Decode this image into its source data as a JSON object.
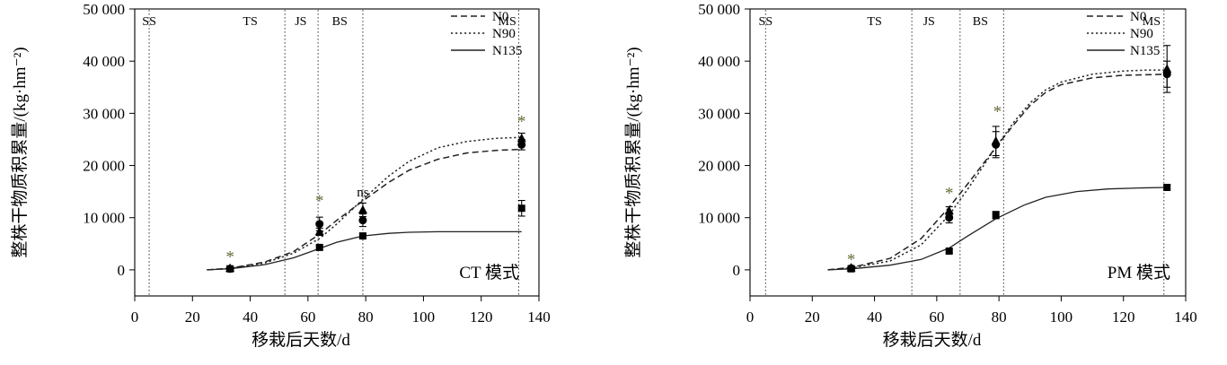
{
  "chart_data": [
    {
      "type": "line",
      "ylabel": "整株干物质积累量/(kg·hm⁻²)",
      "xlabel": "移栽后天数/d",
      "xlim": [
        0,
        140
      ],
      "ylim": [
        -5000,
        50000
      ],
      "xticks": [
        0,
        20,
        40,
        60,
        80,
        100,
        120,
        140
      ],
      "xtick_labels": [
        "0",
        "20",
        "40",
        "60",
        "80",
        "100",
        "120",
        "140"
      ],
      "yticks": [
        0,
        10000,
        20000,
        30000,
        40000,
        50000
      ],
      "ytick_labels": [
        "0",
        "10 000",
        "20 000",
        "30 000",
        "40 000",
        "50 000"
      ],
      "mode_label": "CT 模式",
      "grid": false,
      "legend_position": "top-right",
      "stage_boundaries": [
        5,
        52,
        63.5,
        79,
        133
      ],
      "stages": [
        {
          "label": "SS",
          "x": 5
        },
        {
          "label": "TS",
          "x": 40
        },
        {
          "label": "JS",
          "x": 57.5
        },
        {
          "label": "BS",
          "x": 71
        },
        {
          "label": "MS",
          "x": 129
        }
      ],
      "significance": [
        {
          "x": 33,
          "y": 2800,
          "label": "*"
        },
        {
          "x": 64,
          "y": 13600,
          "label": "*"
        },
        {
          "x": 79,
          "y": 14800,
          "label": "ns"
        },
        {
          "x": 134,
          "y": 28800,
          "label": "*"
        }
      ],
      "series": [
        {
          "name": "N0",
          "dash": "dashed",
          "curve": {
            "x": [
              25,
              33,
              45,
              55,
              64,
              70,
              79,
              88,
              95,
              105,
              115,
              125,
              134
            ],
            "y": [
              0,
              300,
              1500,
              3500,
              6800,
              9500,
              13200,
              16800,
              19100,
              21200,
              22400,
              22900,
              23100
            ]
          },
          "points": [
            {
              "x": 33,
              "y": 300,
              "err": 400
            },
            {
              "x": 64,
              "y": 7300,
              "err": 700
            },
            {
              "x": 79,
              "y": 11500,
              "err": 1300
            },
            {
              "x": 134,
              "y": 25200,
              "err": 1000
            }
          ]
        },
        {
          "name": "N90",
          "dash": "dotted",
          "curve": {
            "x": [
              25,
              33,
              45,
              55,
              64,
              70,
              79,
              88,
              95,
              105,
              115,
              125,
              134
            ],
            "y": [
              0,
              300,
              1300,
              3200,
              6000,
              8800,
              13500,
              18000,
              20800,
              23400,
              24600,
              25200,
              25400
            ]
          },
          "points": [
            {
              "x": 33,
              "y": 200,
              "err": 400
            },
            {
              "x": 64,
              "y": 8800,
              "err": 1300
            },
            {
              "x": 79,
              "y": 9500,
              "err": 1200
            },
            {
              "x": 134,
              "y": 24000,
              "err": 1000
            }
          ]
        },
        {
          "name": "N135",
          "dash": "solid",
          "curve": {
            "x": [
              25,
              33,
              45,
              55,
              64,
              70,
              79,
              88,
              95,
              105,
              115,
              125,
              134
            ],
            "y": [
              0,
              200,
              1000,
              2300,
              4100,
              5300,
              6500,
              7000,
              7200,
              7300,
              7300,
              7300,
              7300
            ]
          },
          "points": [
            {
              "x": 33,
              "y": 200,
              "err": 300
            },
            {
              "x": 64,
              "y": 4300,
              "err": 400
            },
            {
              "x": 79,
              "y": 6500,
              "err": 500
            },
            {
              "x": 134,
              "y": 11800,
              "err": 1500
            }
          ]
        }
      ]
    },
    {
      "type": "line",
      "ylabel": "整株干物质积累量/(kg·hm⁻²)",
      "xlabel": "移栽后天数/d",
      "xlim": [
        0,
        140
      ],
      "ylim": [
        -5000,
        50000
      ],
      "xticks": [
        0,
        20,
        40,
        60,
        80,
        100,
        120,
        140
      ],
      "xtick_labels": [
        "0",
        "20",
        "40",
        "60",
        "80",
        "100",
        "120",
        "140"
      ],
      "yticks": [
        0,
        10000,
        20000,
        30000,
        40000,
        50000
      ],
      "ytick_labels": [
        "0",
        "10 000",
        "20 000",
        "30 000",
        "40 000",
        "50 000"
      ],
      "mode_label": "PM 模式",
      "grid": false,
      "legend_position": "top-right",
      "stage_boundaries": [
        5,
        52,
        67.5,
        81.5,
        133
      ],
      "stages": [
        {
          "label": "SS",
          "x": 5
        },
        {
          "label": "TS",
          "x": 40
        },
        {
          "label": "JS",
          "x": 57.5
        },
        {
          "label": "BS",
          "x": 74
        },
        {
          "label": "MS",
          "x": 129
        }
      ],
      "significance": [
        {
          "x": 32.5,
          "y": 2300,
          "label": "*"
        },
        {
          "x": 64,
          "y": 15000,
          "label": "*"
        },
        {
          "x": 79.5,
          "y": 30700,
          "label": "*"
        }
      ],
      "series": [
        {
          "name": "N0",
          "dash": "dashed",
          "curve": {
            "x": [
              25,
              33,
              45,
              55,
              64,
              70,
              79,
              85,
              90,
              95,
              100,
              110,
              120,
              128,
              134
            ],
            "y": [
              0,
              500,
              2200,
              6000,
              12000,
              16500,
              23500,
              28000,
              31500,
              34000,
              35500,
              36800,
              37300,
              37400,
              37500
            ]
          },
          "points": [
            {
              "x": 32.5,
              "y": 400,
              "err": 400
            },
            {
              "x": 64,
              "y": 11300,
              "err": 800
            },
            {
              "x": 79,
              "y": 24700,
              "err": 2800
            },
            {
              "x": 134,
              "y": 38500,
              "err": 4500
            }
          ]
        },
        {
          "name": "N90",
          "dash": "dotted",
          "curve": {
            "x": [
              25,
              33,
              45,
              55,
              64,
              70,
              79,
              85,
              90,
              95,
              100,
              110,
              120,
              128,
              134
            ],
            "y": [
              0,
              400,
              1700,
              4800,
              10500,
              15500,
              23500,
              28500,
              32000,
              34500,
              36000,
              37500,
              38100,
              38300,
              38300
            ]
          },
          "points": [
            {
              "x": 32.5,
              "y": 300,
              "err": 400
            },
            {
              "x": 64,
              "y": 10000,
              "err": 1000
            },
            {
              "x": 79,
              "y": 24000,
              "err": 2500
            },
            {
              "x": 134,
              "y": 37500,
              "err": 2500
            }
          ]
        },
        {
          "name": "N135",
          "dash": "solid",
          "curve": {
            "x": [
              25,
              33,
              45,
              55,
              64,
              70,
              79,
              88,
              95,
              105,
              115,
              125,
              134
            ],
            "y": [
              0,
              200,
              900,
              2000,
              4200,
              6500,
              9800,
              12400,
              13900,
              15000,
              15500,
              15700,
              15800
            ]
          },
          "points": [
            {
              "x": 32.5,
              "y": 200,
              "err": 300
            },
            {
              "x": 64,
              "y": 3600,
              "err": 300
            },
            {
              "x": 79,
              "y": 10500,
              "err": 700
            },
            {
              "x": 134,
              "y": 15800,
              "err": 400
            }
          ]
        }
      ]
    }
  ]
}
